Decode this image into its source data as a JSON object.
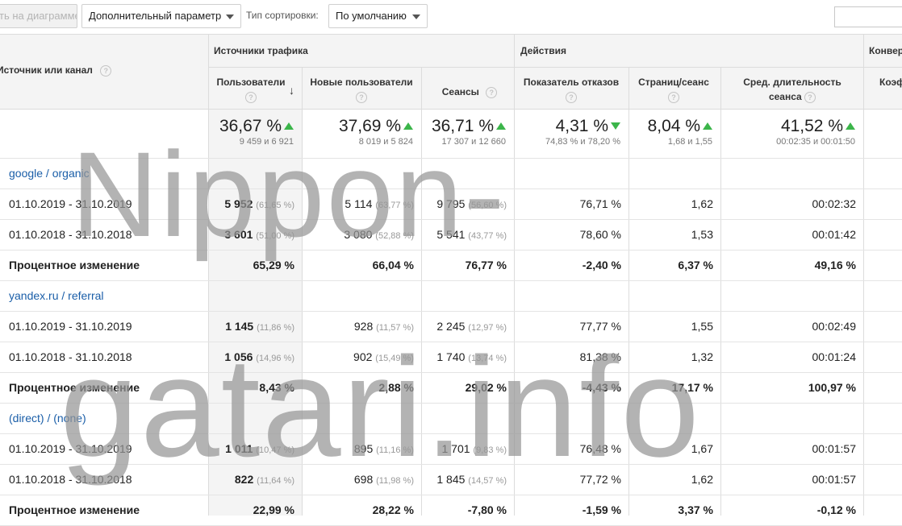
{
  "toolbar": {
    "plot_label": "ть на диаграмме",
    "secondary_dimension": "Дополнительный параметр",
    "sort_type_label": "Тип сортировки:",
    "sort_value": "По умолчанию"
  },
  "table": {
    "dimension_header": "Источник или канал",
    "groups": {
      "traffic": "Источники трафика",
      "actions": "Действия",
      "conversions": "Конвер"
    },
    "columns": {
      "users": "Пользователи",
      "new_users": "Новые пользователи",
      "sessions": "Сеансы",
      "bounce": "Показатель отказов",
      "pages": "Страниц/сеанс",
      "duration_1": "Сред. длительность",
      "duration_2": "сеанса",
      "conv": "Коэф"
    },
    "totals": {
      "users": {
        "pct": "36,67 %",
        "sub": "9 459 и 6 921",
        "trend": "up"
      },
      "new_users": {
        "pct": "37,69 %",
        "sub": "8 019 и 5 824",
        "trend": "up"
      },
      "sessions": {
        "pct": "36,71 %",
        "sub": "17 307 и 12 660",
        "trend": "up"
      },
      "bounce": {
        "pct": "4,31 %",
        "sub": "74,83 % и 78,20 %",
        "trend": "down"
      },
      "pages": {
        "pct": "8,04 %",
        "sub": "1,68 и 1,55",
        "trend": "up"
      },
      "duration": {
        "pct": "41,52 %",
        "sub": "00:02:35 и 00:01:50",
        "trend": "up"
      }
    },
    "sources": [
      {
        "name": "google / organic",
        "rows": [
          {
            "label": "01.10.2019 - 31.10.2019",
            "users": "5 952",
            "users_pct": "(61,65 %)",
            "new_users": "5 114",
            "new_users_pct": "(63,77 %)",
            "sessions": "9 795",
            "sessions_pct": "(56,60 %)",
            "bounce": "76,71 %",
            "pages": "1,62",
            "duration": "00:02:32"
          },
          {
            "label": "01.10.2018 - 31.10.2018",
            "users": "3 601",
            "users_pct": "(51,00 %)",
            "new_users": "3 080",
            "new_users_pct": "(52,88 %)",
            "sessions": "5 541",
            "sessions_pct": "(43,77 %)",
            "bounce": "78,60 %",
            "pages": "1,53",
            "duration": "00:01:42"
          },
          {
            "label": "Процентное изменение",
            "users": "65,29 %",
            "new_users": "66,04 %",
            "sessions": "76,77 %",
            "bounce": "-2,40 %",
            "pages": "6,37 %",
            "duration": "49,16 %"
          }
        ]
      },
      {
        "name": "yandex.ru / referral",
        "rows": [
          {
            "label": "01.10.2019 - 31.10.2019",
            "users": "1 145",
            "users_pct": "(11,86 %)",
            "new_users": "928",
            "new_users_pct": "(11,57 %)",
            "sessions": "2 245",
            "sessions_pct": "(12,97 %)",
            "bounce": "77,77 %",
            "pages": "1,55",
            "duration": "00:02:49"
          },
          {
            "label": "01.10.2018 - 31.10.2018",
            "users": "1 056",
            "users_pct": "(14,96 %)",
            "new_users": "902",
            "new_users_pct": "(15,49 %)",
            "sessions": "1 740",
            "sessions_pct": "(13,74 %)",
            "bounce": "81,38 %",
            "pages": "1,32",
            "duration": "00:01:24"
          },
          {
            "label": "Процентное изменение",
            "users": "8,43 %",
            "new_users": "2,88 %",
            "sessions": "29,02 %",
            "bounce": "-4,43 %",
            "pages": "17,17 %",
            "duration": "100,97 %"
          }
        ]
      },
      {
        "name": "(direct) / (none)",
        "rows": [
          {
            "label": "01.10.2019 - 31.10.2019",
            "users": "1 011",
            "users_pct": "(10,47 %)",
            "new_users": "895",
            "new_users_pct": "(11,16 %)",
            "sessions": "1 701",
            "sessions_pct": "(9,83 %)",
            "bounce": "76,48 %",
            "pages": "1,67",
            "duration": "00:01:57"
          },
          {
            "label": "01.10.2018 - 31.10.2018",
            "users": "822",
            "users_pct": "(11,64 %)",
            "new_users": "698",
            "new_users_pct": "(11,98 %)",
            "sessions": "1 845",
            "sessions_pct": "(14,57 %)",
            "bounce": "77,72 %",
            "pages": "1,62",
            "duration": "00:01:57"
          },
          {
            "label": "Процентное изменение",
            "users": "22,99 %",
            "new_users": "28,22 %",
            "sessions": "-7,80 %",
            "bounce": "-1,59 %",
            "pages": "3,37 %",
            "duration": "-0,12 %"
          }
        ]
      }
    ]
  },
  "watermark": {
    "line1": "Nippon-",
    "line2": "gatari.info"
  },
  "colors": {
    "link": "#1a5ea8",
    "trend": "#3bb54a",
    "header_bg": "#f4f4f4"
  }
}
